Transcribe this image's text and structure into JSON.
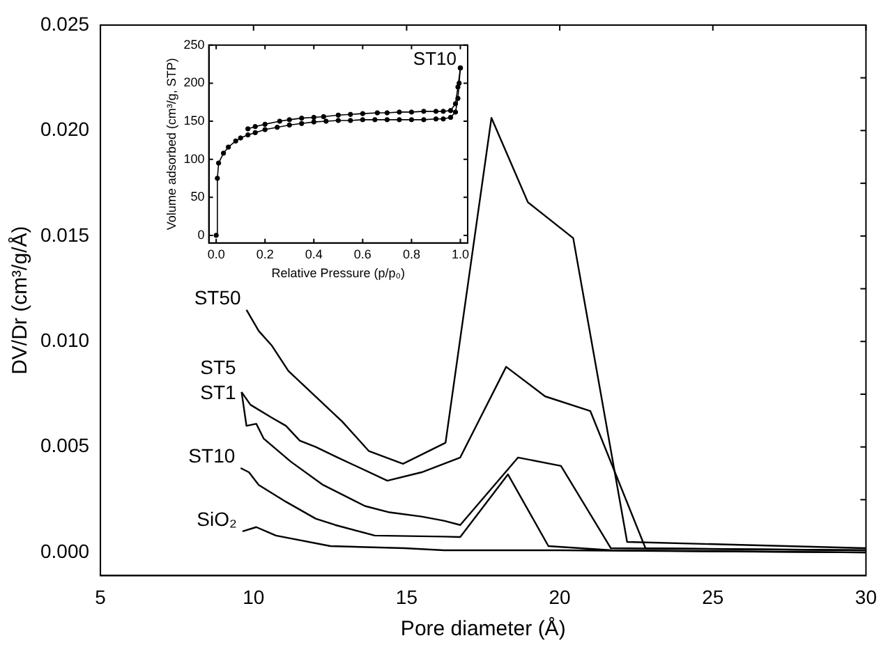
{
  "chart_data": [
    {
      "type": "line",
      "xlabel": "Pore diameter (Å)",
      "ylabel": "DV/Dr (cm³/g/Å)",
      "xlim": [
        5,
        30
      ],
      "xticks": [
        5,
        10,
        15,
        20,
        25,
        30
      ],
      "ylim": [
        -0.0011,
        0.025
      ],
      "yticks": [
        {
          "value": 0,
          "label": "0.000"
        },
        {
          "value": 0.0025,
          "label": null
        },
        {
          "value": 0.005,
          "label": "0.005"
        },
        {
          "value": 0.0075,
          "label": null
        },
        {
          "value": 0.01,
          "label": "0.010"
        },
        {
          "value": 0.0125,
          "label": null
        },
        {
          "value": 0.015,
          "label": "0.015"
        },
        {
          "value": 0.0175,
          "label": null
        },
        {
          "value": 0.02,
          "label": "0.020"
        },
        {
          "value": 0.0225,
          "label": null
        },
        {
          "value": 0.025,
          "label": "0.025"
        }
      ],
      "legend": false,
      "marker": "none",
      "series": [
        {
          "name": "ST50",
          "color": "#000000",
          "x": [
            9.77,
            10.17,
            10.6,
            11.14,
            12.9,
            13.77,
            14.88,
            16.27,
            17.77,
            18.96,
            20.44,
            22.2,
            30
          ],
          "values": [
            0.0115,
            0.0105,
            0.0098,
            0.0086,
            0.0062,
            0.0048,
            0.0042,
            0.0052,
            0.0206,
            0.0166,
            0.0149,
            0.0005,
            0.0002
          ]
        },
        {
          "name": "ST5",
          "color": "#000000",
          "x": [
            9.61,
            9.9,
            10.58,
            11.06,
            11.51,
            12.03,
            12.75,
            14.37,
            15.49,
            16.75,
            18.25,
            19.52,
            21.0,
            22.8,
            30
          ],
          "values": [
            0.0076,
            0.007,
            0.0064,
            0.006,
            0.0053,
            0.005,
            0.0045,
            0.0034,
            0.0038,
            0.0045,
            0.0088,
            0.0074,
            0.0067,
            0.0002,
            0.0001
          ]
        },
        {
          "name": "ST1",
          "color": "#000000",
          "x": [
            9.61,
            9.77,
            10.09,
            10.33,
            11.22,
            12.27,
            13.64,
            14.44,
            15.49,
            16.22,
            16.75,
            18.64,
            20.04,
            21.67,
            30
          ],
          "values": [
            0.0076,
            0.006,
            0.0061,
            0.0054,
            0.0043,
            0.0032,
            0.0022,
            0.0019,
            0.0017,
            0.0015,
            0.0013,
            0.0045,
            0.0041,
            0.0002,
            0.0001
          ]
        },
        {
          "name": "ST10",
          "color": "#000000",
          "x": [
            9.58,
            9.85,
            10.17,
            11.06,
            12.03,
            12.67,
            13.96,
            16.22,
            16.75,
            18.31,
            19.63,
            21.7,
            30
          ],
          "values": [
            0.004,
            0.0038,
            0.0032,
            0.0024,
            0.0016,
            0.0013,
            0.0008,
            0.00075,
            0.00073,
            0.0037,
            0.0003,
            0.0001,
            0
          ]
        },
        {
          "name": "SiO₂",
          "color": "#000000",
          "x": [
            9.64,
            10.09,
            10.73,
            12.51,
            14.93,
            16.22,
            20,
            30
          ],
          "values": [
            0.001,
            0.0012,
            0.0008,
            0.0003,
            0.0002,
            0.0001,
            0.0001,
            0
          ]
        }
      ]
    },
    {
      "type": "line",
      "xlabel": "Relative Pressure (p/p₀)",
      "ylabel": "Volume adsorbed (cm³/g, STP)",
      "annotations": [
        "ST10"
      ],
      "xlim": [
        -0.03,
        1.03
      ],
      "xticks": [
        {
          "value": 0,
          "label": "0.0"
        },
        {
          "value": 0.2,
          "label": "0.2"
        },
        {
          "value": 0.4,
          "label": "0.4"
        },
        {
          "value": 0.6,
          "label": "0.6"
        },
        {
          "value": 0.8,
          "label": "0.8"
        },
        {
          "value": 1,
          "label": "1.0"
        }
      ],
      "ylim": [
        -10,
        250
      ],
      "yticks": [
        0,
        50,
        100,
        150,
        200,
        250
      ],
      "legend": false,
      "marker": "circle",
      "line_style": "solid",
      "series": [
        {
          "color": "#000000",
          "x": [
            0,
            0.005,
            0.01,
            0.03,
            0.05,
            0.08,
            0.1,
            0.13,
            0.16,
            0.2,
            0.25,
            0.3,
            0.35,
            0.4,
            0.45,
            0.5,
            0.55,
            0.6,
            0.65,
            0.7,
            0.75,
            0.8,
            0.85,
            0.9,
            0.93,
            0.96,
            0.98,
            0.99,
            0.995,
            1.0
          ],
          "values": [
            0,
            75,
            95,
            108,
            116,
            124,
            128,
            132,
            135,
            139,
            142,
            145,
            147,
            149,
            150,
            151,
            151,
            152,
            152,
            152,
            152,
            152,
            152,
            153,
            153,
            155,
            162,
            180,
            200,
            220
          ]
        },
        {
          "color": "#000000",
          "x": [
            0.13,
            0.16,
            0.2,
            0.26,
            0.3,
            0.35,
            0.4,
            0.44,
            0.5,
            0.55,
            0.6,
            0.66,
            0.7,
            0.75,
            0.8,
            0.85,
            0.9,
            0.93,
            0.96,
            0.98,
            0.99,
            1.0
          ],
          "values": [
            140,
            143,
            146,
            150,
            152,
            154,
            155,
            156,
            158,
            159,
            160,
            161,
            161,
            162,
            162,
            163,
            163,
            163,
            164,
            173,
            195,
            220
          ]
        }
      ]
    }
  ]
}
